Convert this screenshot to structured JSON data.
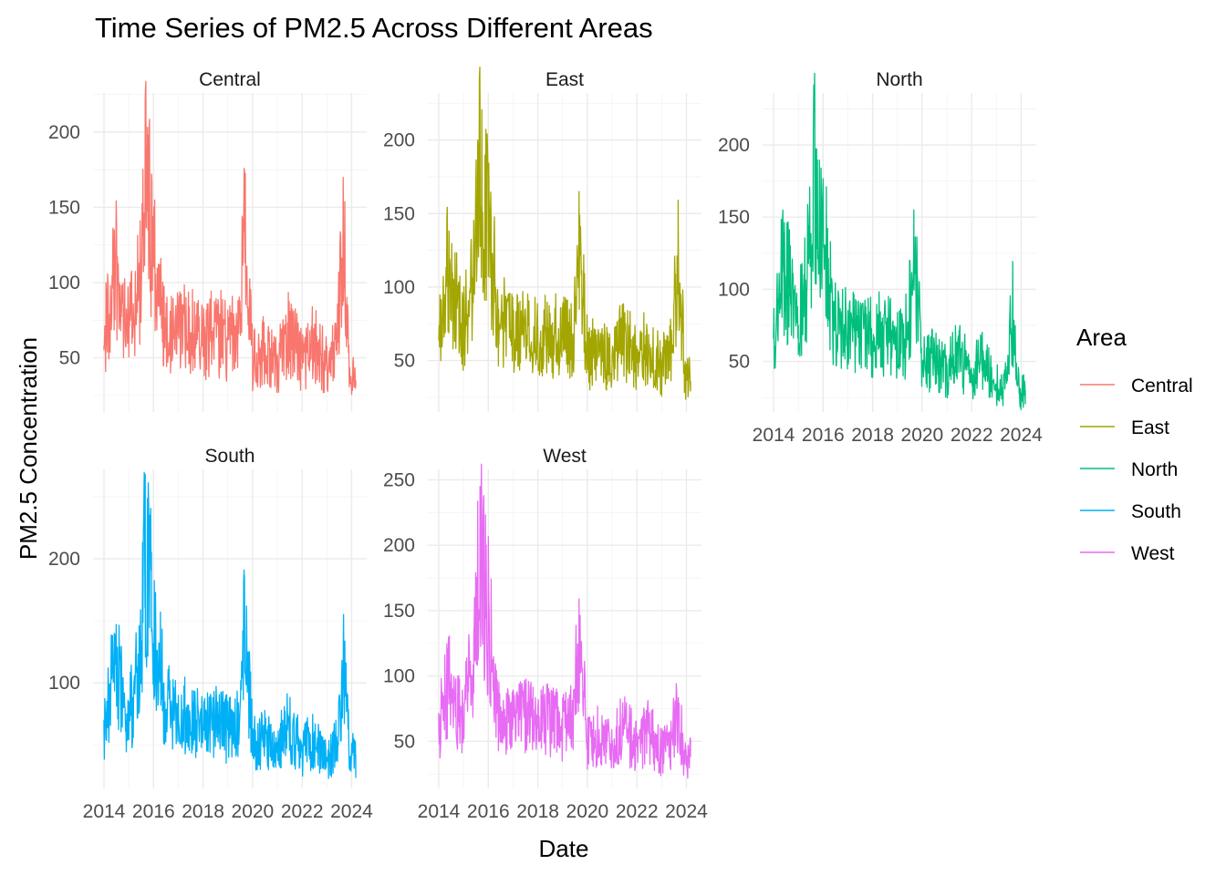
{
  "chart_data": {
    "type": "line",
    "title": "Time Series of PM2.5 Across Different Areas",
    "xlabel": "Date",
    "ylabel": "PM2.5 Concentration",
    "x_ticks": [
      "2014",
      "2016",
      "2018",
      "2020",
      "2022",
      "2024"
    ],
    "x_range": [
      "2014-01",
      "2024-03"
    ],
    "legend": {
      "title": "Area",
      "placement": "right"
    },
    "grid": true,
    "panels": [
      {
        "name": "Central",
        "color": "#F8766D",
        "yticks": [
          50,
          100,
          150,
          200
        ],
        "ylim": [
          14,
          226
        ],
        "x": [
          "2014-01",
          "2014-06",
          "2015-01",
          "2015-06",
          "2015-09",
          "2015-12",
          "2016-06",
          "2017-01",
          "2017-06",
          "2018-01",
          "2018-06",
          "2019-01",
          "2019-06",
          "2019-09",
          "2020-01",
          "2020-06",
          "2021-01",
          "2021-06",
          "2022-01",
          "2022-06",
          "2023-01",
          "2023-06",
          "2023-09",
          "2023-12",
          "2024-03"
        ],
        "values": [
          58,
          135,
          72,
          110,
          221,
          160,
          80,
          65,
          75,
          60,
          70,
          62,
          66,
          156,
          50,
          55,
          45,
          67,
          48,
          60,
          45,
          55,
          156,
          40,
          35
        ]
      },
      {
        "name": "East",
        "color": "#A3A500",
        "yticks": [
          50,
          100,
          150,
          200
        ],
        "ylim": [
          15,
          232
        ],
        "x": [
          "2014-01",
          "2014-06",
          "2015-01",
          "2015-06",
          "2015-09",
          "2015-12",
          "2016-06",
          "2017-01",
          "2017-06",
          "2018-01",
          "2018-06",
          "2019-01",
          "2019-06",
          "2019-09",
          "2020-01",
          "2020-06",
          "2021-01",
          "2021-06",
          "2022-01",
          "2022-06",
          "2023-01",
          "2023-06",
          "2023-09",
          "2023-12",
          "2024-03"
        ],
        "values": [
          64,
          138,
          70,
          140,
          229,
          190,
          85,
          66,
          78,
          62,
          72,
          64,
          68,
          165,
          52,
          56,
          47,
          66,
          50,
          61,
          46,
          58,
          159,
          42,
          36
        ]
      },
      {
        "name": "North",
        "color": "#00BF7D",
        "yticks": [
          50,
          100,
          150,
          200
        ],
        "ylim": [
          15,
          236
        ],
        "x": [
          "2014-01",
          "2014-06",
          "2015-01",
          "2015-06",
          "2015-09",
          "2015-12",
          "2016-06",
          "2017-01",
          "2017-06",
          "2018-01",
          "2018-06",
          "2019-01",
          "2019-06",
          "2019-09",
          "2020-01",
          "2020-06",
          "2021-01",
          "2021-06",
          "2022-01",
          "2022-06",
          "2023-01",
          "2023-06",
          "2023-09",
          "2023-12",
          "2024-03"
        ],
        "values": [
          66,
          139,
          75,
          144,
          233,
          184,
          90,
          70,
          80,
          64,
          74,
          62,
          70,
          155,
          48,
          52,
          42,
          56,
          40,
          50,
          34,
          35,
          92,
          28,
          30
        ]
      },
      {
        "name": "South",
        "color": "#00B0F6",
        "yticks": [
          100,
          200
        ],
        "ylim": [
          15,
          272
        ],
        "x": [
          "2014-01",
          "2014-06",
          "2015-01",
          "2015-06",
          "2015-09",
          "2015-12",
          "2016-06",
          "2017-01",
          "2017-06",
          "2018-01",
          "2018-06",
          "2019-01",
          "2019-06",
          "2019-09",
          "2020-01",
          "2020-06",
          "2021-01",
          "2021-06",
          "2022-01",
          "2022-06",
          "2023-01",
          "2023-06",
          "2023-09",
          "2023-12",
          "2024-03"
        ],
        "values": [
          62,
          140,
          70,
          146,
          268,
          205,
          100,
          68,
          82,
          60,
          75,
          62,
          68,
          171,
          52,
          56,
          45,
          68,
          44,
          55,
          40,
          50,
          137,
          40,
          42
        ]
      },
      {
        "name": "West",
        "color": "#E76BF3",
        "yticks": [
          50,
          100,
          150,
          200,
          250
        ],
        "ylim": [
          14,
          258
        ],
        "x": [
          "2014-01",
          "2014-06",
          "2015-01",
          "2015-06",
          "2015-09",
          "2015-12",
          "2016-06",
          "2017-01",
          "2017-06",
          "2018-01",
          "2018-06",
          "2019-01",
          "2019-06",
          "2019-09",
          "2020-01",
          "2020-06",
          "2021-01",
          "2021-06",
          "2022-01",
          "2022-06",
          "2023-01",
          "2023-06",
          "2023-09",
          "2023-12",
          "2024-03"
        ],
        "values": [
          60,
          107,
          68,
          136,
          245,
          200,
          80,
          64,
          75,
          60,
          70,
          60,
          66,
          159,
          48,
          55,
          44,
          62,
          46,
          58,
          42,
          52,
          80,
          35,
          38
        ]
      }
    ]
  }
}
